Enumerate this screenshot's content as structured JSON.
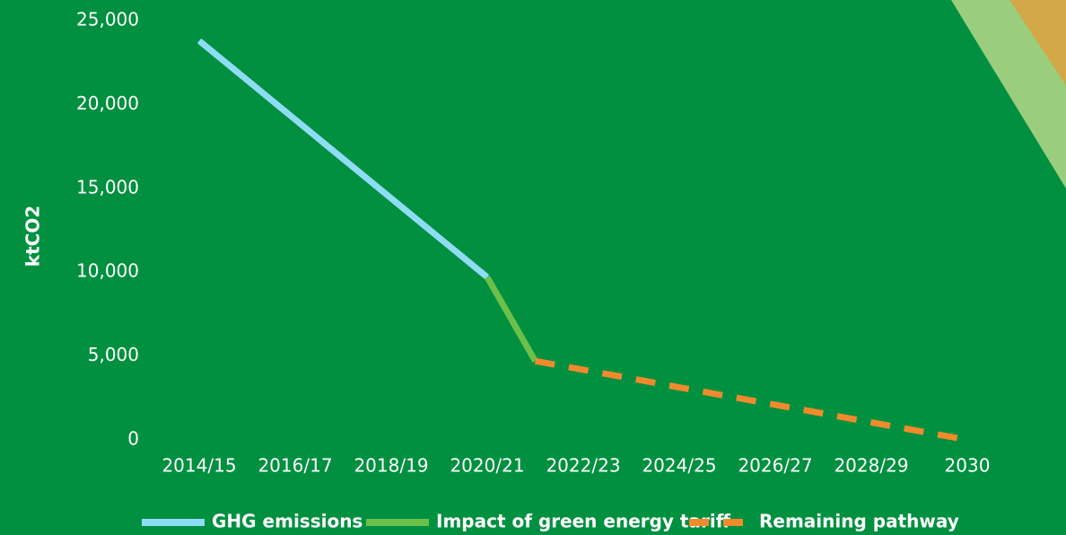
{
  "chart_data": {
    "type": "line",
    "y_label": "ktCO2",
    "categories": [
      "2014/15",
      null,
      "2016/17",
      null,
      "2018/19",
      null,
      "2020/21",
      null,
      "2022/23",
      null,
      "2024/25",
      null,
      "2026/27",
      null,
      "2028/29",
      null,
      "2030"
    ],
    "series": [
      {
        "name": "GHG emissions",
        "color": "#8fdcf5",
        "style": "solid",
        "values": [
          23800,
          21450,
          19100,
          16750,
          14400,
          12050,
          9700,
          null,
          null,
          null,
          null,
          null,
          null,
          null,
          null,
          null,
          null
        ]
      },
      {
        "name": "Impact of green energy tariff",
        "color": "#6cc04a",
        "style": "solid",
        "values": [
          null,
          null,
          null,
          null,
          null,
          null,
          9700,
          4700,
          null,
          null,
          null,
          null,
          null,
          null,
          null,
          null,
          null
        ]
      },
      {
        "name": "Remaining pathway",
        "color": "#f08a2c",
        "style": "dashed",
        "values": [
          null,
          null,
          null,
          null,
          null,
          null,
          null,
          4700,
          4180,
          3660,
          3130,
          2610,
          2090,
          1570,
          1040,
          520,
          0
        ]
      }
    ],
    "ylim": [
      0,
      25000
    ],
    "yticks": [
      0,
      {
        "value": 5000,
        "label": "5,000"
      },
      {
        "value": 10000,
        "label": "10,000"
      },
      {
        "value": 15000,
        "label": "15,000"
      },
      {
        "value": 20000,
        "label": "20,000"
      },
      {
        "value": 25000,
        "label": "25,000"
      }
    ],
    "grid": false,
    "legend": "bottom"
  }
}
